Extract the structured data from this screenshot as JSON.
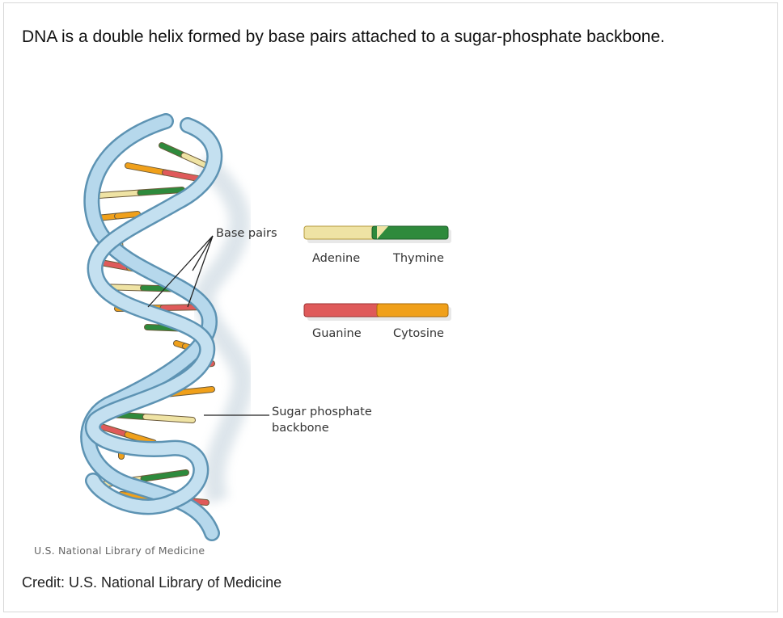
{
  "caption": "DNA is a double helix formed by base pairs attached to a sugar-phosphate backbone.",
  "credit": "Credit: U.S. National Library of Medicine",
  "figure": {
    "watermark": "U.S. National Library of Medicine",
    "labels": {
      "base_pairs": "Base pairs",
      "backbone_line1": "Sugar phosphate",
      "backbone_line2": "backbone"
    },
    "legend": [
      {
        "left": "Adenine",
        "right": "Thymine",
        "left_color": "#efe3a4",
        "right_color": "#2e8a3c"
      },
      {
        "left": "Guanine",
        "right": "Cytosine",
        "left_color": "#df5a5a",
        "right_color": "#f0a01a"
      }
    ],
    "colors": {
      "backbone": "#a9d0e6",
      "backbone_edge": "#5d93b3",
      "adenine": "#efe3a4",
      "thymine": "#2e8a3c",
      "guanine": "#df5a5a",
      "cytosine": "#f0a01a"
    }
  }
}
